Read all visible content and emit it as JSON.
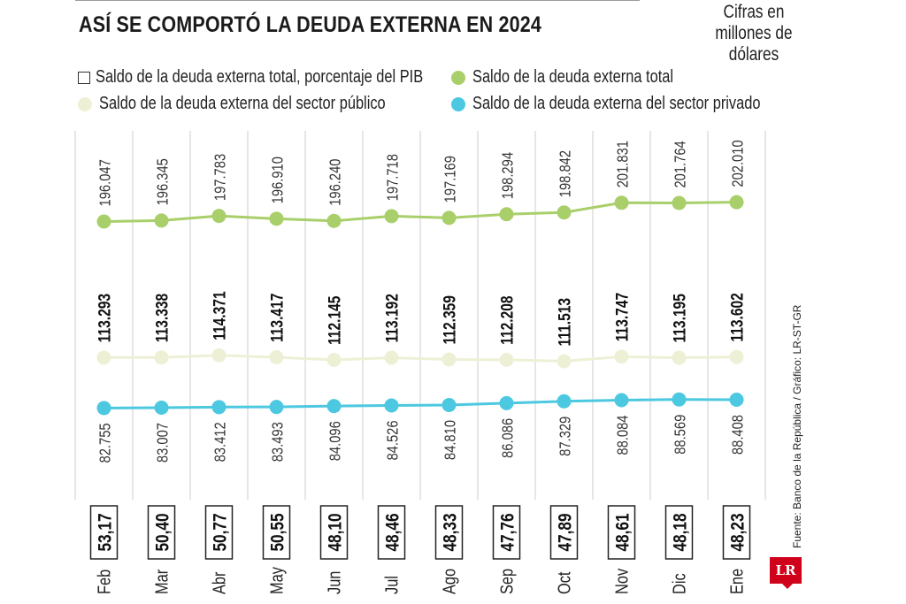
{
  "header": {
    "title": "ASÍ SE COMPORTÓ LA DEUDA EXTERNA EN 2024",
    "units": "Cifras en millones de dólares"
  },
  "legend": {
    "pib": "Saldo de la deuda externa total, porcentaje del PIB",
    "total": "Saldo de la deuda externa total",
    "publico": "Saldo de la deuda externa del sector público",
    "privado": "Saldo de la deuda externa del sector privado"
  },
  "colors": {
    "total": "#a9cf6b",
    "publico": "#eef0d6",
    "privado": "#4cc8e0",
    "gridline": "#cccccc",
    "box_border": "#222222",
    "brand": "#d0021b"
  },
  "source": "Fuente: Banco de la República / Gráfico: LR-ST-GR",
  "logo": "LR",
  "chart_data": {
    "type": "line",
    "title": "ASÍ SE COMPORTÓ LA DEUDA EXTERNA EN 2024",
    "units": "Cifras en millones de dólares",
    "categories": [
      "Feb",
      "Mar",
      "Abr",
      "May",
      "Jun",
      "Jul",
      "Ago",
      "Sep",
      "Oct",
      "Nov",
      "Dic",
      "Ene"
    ],
    "series": [
      {
        "key": "total",
        "name": "Saldo de la deuda externa total",
        "values": [
          196.047,
          196.345,
          197.783,
          196.91,
          196.24,
          197.718,
          197.169,
          198.294,
          198.842,
          201.831,
          201.764,
          202.01
        ],
        "labels": [
          "196.047",
          "196.345",
          "197.783",
          "196.910",
          "196.240",
          "197.718",
          "197.169",
          "198.294",
          "198.842",
          "201.831",
          "201.764",
          "202.010"
        ]
      },
      {
        "key": "publico",
        "name": "Saldo de la deuda externa del sector público",
        "values": [
          113.293,
          113.338,
          114.371,
          113.417,
          112.145,
          113.192,
          112.359,
          112.208,
          111.513,
          113.747,
          113.195,
          113.602
        ],
        "labels": [
          "113.293",
          "113.338",
          "114.371",
          "113.417",
          "112.145",
          "113.192",
          "112.359",
          "112.208",
          "111.513",
          "113.747",
          "113.195",
          "113.602"
        ]
      },
      {
        "key": "privado",
        "name": "Saldo de la deuda externa del sector privado",
        "values": [
          82.755,
          83.007,
          83.412,
          83.493,
          84.096,
          84.526,
          84.81,
          86.086,
          87.329,
          88.084,
          88.569,
          88.408
        ],
        "labels": [
          "82.755",
          "83.007",
          "83.412",
          "83.493",
          "84.096",
          "84.526",
          "84.810",
          "86.086",
          "87.329",
          "88.084",
          "88.569",
          "88.408"
        ]
      }
    ],
    "pib_percent": {
      "name": "Saldo de la deuda externa total, porcentaje del PIB",
      "labels": [
        "53,17",
        "50,40",
        "50,77",
        "50,55",
        "48,10",
        "48,46",
        "48,33",
        "47,76",
        "47,89",
        "48,61",
        "48,18",
        "48,23"
      ]
    },
    "grid": true,
    "legend_position": "top"
  }
}
